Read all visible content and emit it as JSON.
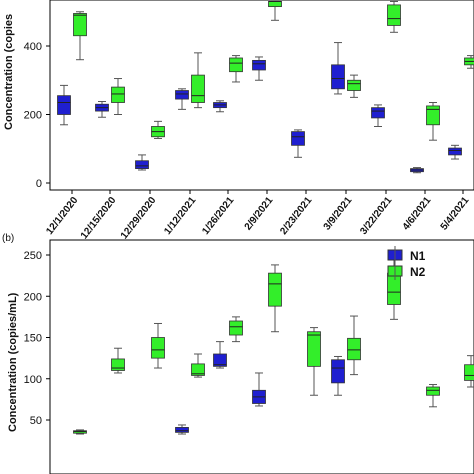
{
  "panel_a": {
    "label": "",
    "ylabel": "Concentration (copies",
    "yticks": [
      "0",
      "200",
      "400"
    ]
  },
  "panel_b": {
    "label": "(b)",
    "ylabel": "Concentration (copies/mL)",
    "yticks": [
      "50",
      "100",
      "150",
      "200",
      "250"
    ],
    "legend": [
      "N1",
      "N2"
    ]
  },
  "colors": {
    "N1": "#1f1fd0",
    "N2": "#33ee2a",
    "edge": "#333333",
    "whisker": "#555555"
  },
  "chart_data": [
    {
      "type": "box",
      "title": "",
      "xlabel": "",
      "ylabel": "Concentration (copies",
      "ylim": [
        0,
        530
      ],
      "categories": [
        "12/1/2020",
        "12/15/2020",
        "12/29/2020",
        "1/12/2021",
        "1/26/2021",
        "2/9/2021",
        "2/23/2021",
        "3/9/2021",
        "3/22/2021",
        "4/6/2021",
        "5/4/2021"
      ],
      "series": [
        {
          "name": "N1",
          "boxes": [
            {
              "min": 170,
              "q1": 200,
              "median": 235,
              "q3": 255,
              "max": 285
            },
            {
              "min": 192,
              "q1": 210,
              "median": 220,
              "q3": 230,
              "max": 238
            },
            {
              "min": 38,
              "q1": 42,
              "median": 50,
              "q3": 65,
              "max": 82
            },
            {
              "min": 215,
              "q1": 245,
              "median": 260,
              "q3": 270,
              "max": 275
            },
            {
              "min": 208,
              "q1": 220,
              "median": 228,
              "q3": 235,
              "max": 240
            },
            {
              "min": 300,
              "q1": 330,
              "median": 348,
              "q3": 358,
              "max": 368
            },
            {
              "min": 75,
              "q1": 110,
              "median": 135,
              "q3": 150,
              "max": 155
            },
            {
              "min": 260,
              "q1": 275,
              "median": 305,
              "q3": 345,
              "max": 410
            },
            {
              "min": 165,
              "q1": 190,
              "median": 210,
              "q3": 220,
              "max": 228
            },
            {
              "min": 30,
              "q1": 33,
              "median": 38,
              "q3": 42,
              "max": 45
            },
            {
              "min": 70,
              "q1": 82,
              "median": 95,
              "q3": 102,
              "max": 110
            }
          ]
        },
        {
          "name": "N2",
          "boxes": [
            {
              "min": 360,
              "q1": 430,
              "median": 490,
              "q3": 495,
              "max": 500
            },
            {
              "min": 200,
              "q1": 235,
              "median": 260,
              "q3": 280,
              "max": 305
            },
            {
              "min": 130,
              "q1": 135,
              "median": 150,
              "q3": 165,
              "max": 180
            },
            {
              "min": 220,
              "q1": 235,
              "median": 255,
              "q3": 315,
              "max": 380
            },
            {
              "min": 295,
              "q1": 325,
              "median": 350,
              "q3": 365,
              "max": 372
            },
            {
              "min": 475,
              "q1": 515,
              "median": 530,
              "q3": 530,
              "max": 530
            },
            null,
            {
              "min": 250,
              "q1": 270,
              "median": 290,
              "q3": 300,
              "max": 315
            },
            {
              "min": 440,
              "q1": 460,
              "median": 480,
              "q3": 520,
              "max": 530
            },
            {
              "min": 125,
              "q1": 170,
              "median": 215,
              "q3": 225,
              "max": 235
            },
            {
              "min": 335,
              "q1": 345,
              "median": 355,
              "q3": 365,
              "max": 372
            }
          ]
        }
      ]
    },
    {
      "type": "box",
      "title": "",
      "xlabel": "",
      "ylabel": "Concentration (copies/mL)",
      "ylim": [
        25,
        262
      ],
      "legend_position": "top-right",
      "categories": [
        "12/1/2020",
        "12/15/2020",
        "12/29/2020",
        "1/12/2021",
        "1/26/2021",
        "2/9/2021",
        "2/23/2021",
        "3/9/2021",
        "3/22/2021",
        "4/6/2021",
        "5/4/2021"
      ],
      "series": [
        {
          "name": "N1",
          "boxes": [
            null,
            null,
            null,
            {
              "min": 33,
              "q1": 35,
              "median": 37,
              "q3": 41,
              "max": 44
            },
            {
              "min": 113,
              "q1": 115,
              "median": 117,
              "q3": 130,
              "max": 145
            },
            {
              "min": 67,
              "q1": 70,
              "median": 78,
              "q3": 86,
              "max": 107
            },
            null,
            {
              "min": 80,
              "q1": 95,
              "median": 113,
              "q3": 123,
              "max": 127
            },
            null,
            null,
            null
          ]
        },
        {
          "name": "N2",
          "boxes": [
            {
              "min": 33,
              "q1": 34,
              "median": 36,
              "q3": 37,
              "max": 38
            },
            {
              "min": 107,
              "q1": 110,
              "median": 113,
              "q3": 124,
              "max": 137
            },
            {
              "min": 113,
              "q1": 125,
              "median": 135,
              "q3": 150,
              "max": 167
            },
            {
              "min": 102,
              "q1": 104,
              "median": 106,
              "q3": 118,
              "max": 130
            },
            {
              "min": 145,
              "q1": 153,
              "median": 163,
              "q3": 170,
              "max": 175
            },
            {
              "min": 157,
              "q1": 188,
              "median": 215,
              "q3": 228,
              "max": 238
            },
            {
              "min": 80,
              "q1": 115,
              "median": 153,
              "q3": 157,
              "max": 162
            },
            {
              "min": 105,
              "q1": 123,
              "median": 135,
              "q3": 149,
              "max": 176
            },
            {
              "min": 172,
              "q1": 190,
              "median": 205,
              "q3": 228,
              "max": 252
            },
            {
              "min": 66,
              "q1": 80,
              "median": 86,
              "q3": 90,
              "max": 93
            },
            {
              "min": 90,
              "q1": 98,
              "median": 104,
              "q3": 117,
              "max": 128
            }
          ]
        }
      ]
    }
  ]
}
